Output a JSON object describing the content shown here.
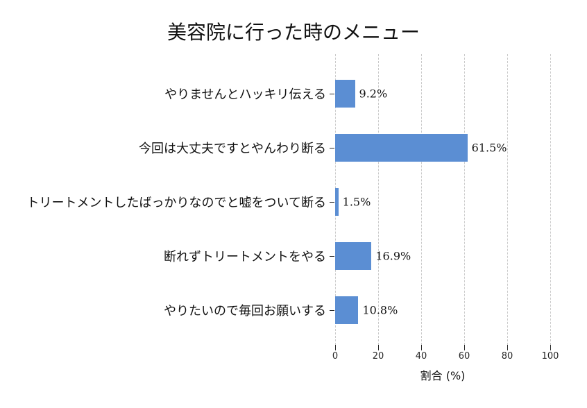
{
  "chart_data": {
    "type": "bar",
    "orientation": "horizontal",
    "title": "美容院に行った時のメニュー",
    "xlabel": "割合 (%)",
    "categories": [
      "やりませんとハッキリ伝える",
      "今回は大丈夫ですとやんわり断る",
      "トリートメントしたばっかりなのでと嘘をついて断る",
      "断れずトリートメントをやる",
      "やりたいので毎回お願いする"
    ],
    "values": [
      9.2,
      61.5,
      1.5,
      16.9,
      10.8
    ],
    "value_labels": [
      "9.2%",
      "61.5%",
      "1.5%",
      "16.9%",
      "10.8%"
    ],
    "xticks": [
      0,
      20,
      40,
      60,
      80,
      100
    ],
    "xlim": [
      0,
      100
    ],
    "bar_color": "#5b8ed3",
    "gridline_color": "#c9c9c9",
    "grid": "vertical-dashed",
    "legend": "none",
    "background": "#ffffff"
  }
}
